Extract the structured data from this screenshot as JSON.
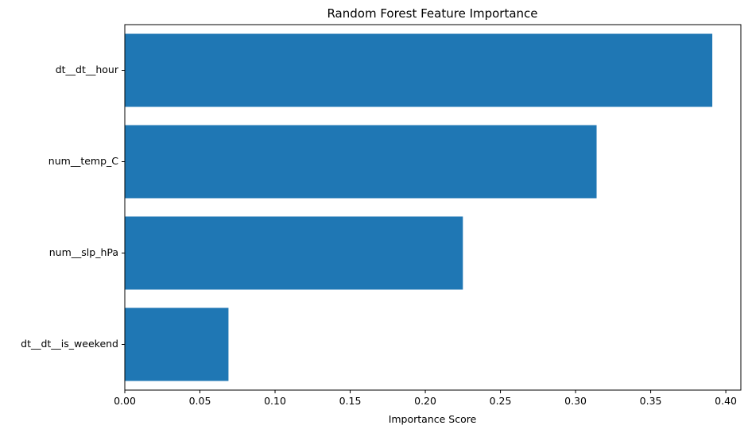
{
  "chart_data": {
    "type": "bar",
    "orientation": "horizontal",
    "title": "Random Forest Feature Importance",
    "xlabel": "Importance Score",
    "ylabel": "",
    "categories": [
      "dt__dt__hour",
      "num__temp_C",
      "num__slp_hPa",
      "dt__dt__is_weekend"
    ],
    "values": [
      0.391,
      0.314,
      0.225,
      0.069
    ],
    "xlim": [
      0.0,
      0.41
    ],
    "xticks": [
      0.0,
      0.05,
      0.1,
      0.15,
      0.2,
      0.25,
      0.3,
      0.35,
      0.4
    ],
    "xtick_labels": [
      "0.00",
      "0.05",
      "0.10",
      "0.15",
      "0.20",
      "0.25",
      "0.30",
      "0.35",
      "0.40"
    ],
    "bar_color": "#1f77b4",
    "grid": false,
    "legend": "none"
  }
}
